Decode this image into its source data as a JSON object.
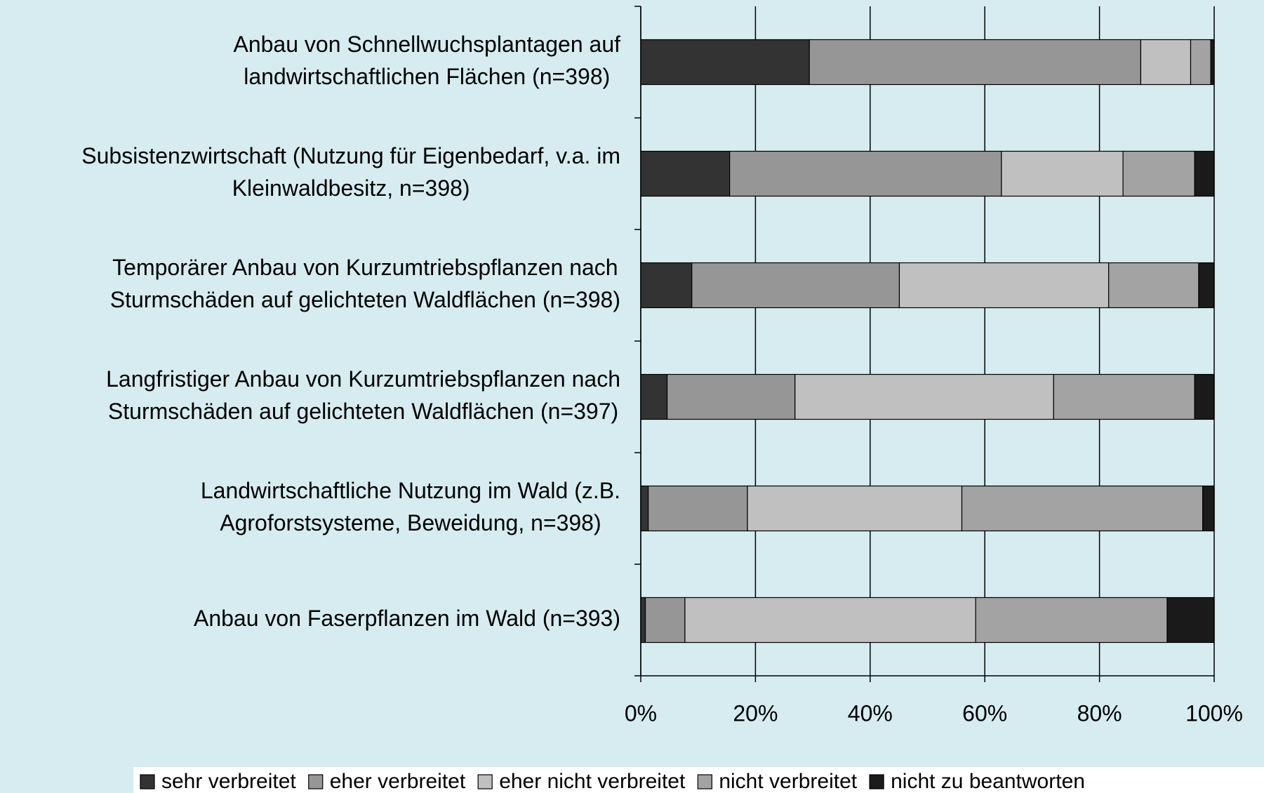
{
  "chart_data": {
    "type": "stacked_barh",
    "categories": [
      [
        "Anbau von Schnellwuchsplantagen auf",
        "landwirtschaftlichen Flächen (n=398)"
      ],
      [
        "Subsistenzwirtschaft (Nutzung für Eigenbedarf, v.a. im",
        "Kleinwaldbesitz, n=398)"
      ],
      [
        "Temporärer Anbau von Kurzumtriebspflanzen nach",
        "Sturmschäden auf gelichteten Waldflächen (n=398)"
      ],
      [
        "Langfristiger Anbau von Kurzumtriebspflanzen nach",
        "Sturmschäden auf gelichteten Waldflächen (n=397)"
      ],
      [
        "Landwirtschaftliche Nutzung im Wald (z.B.",
        "Agroforstsysteme, Beweidung, n=398)"
      ],
      [
        "Anbau von Faserpflanzen im Wald (n=393)"
      ]
    ],
    "series": [
      {
        "name": "sehr verbreitet",
        "color": "#333333",
        "values": [
          29.4,
          15.5,
          8.9,
          4.6,
          1.3,
          0.8
        ]
      },
      {
        "name": "eher verbreitet",
        "color": "#969696",
        "values": [
          57.8,
          47.4,
          36.2,
          22.3,
          17.3,
          6.9
        ]
      },
      {
        "name": "eher nicht verbreitet",
        "color": "#c0c0c0",
        "values": [
          8.7,
          21.2,
          36.5,
          45.1,
          37.4,
          50.7
        ]
      },
      {
        "name": "nicht verbreitet",
        "color": "#a3a3a3",
        "values": [
          3.5,
          12.5,
          15.7,
          24.6,
          42.0,
          33.4
        ]
      },
      {
        "name": "nicht zu beantworten",
        "color": "#1a1a1a",
        "values": [
          0.6,
          3.4,
          2.7,
          3.4,
          2.0,
          8.2
        ]
      }
    ],
    "xlim": [
      0,
      100
    ],
    "xticks": [
      {
        "value": 0,
        "label": "0%"
      },
      {
        "value": 20,
        "label": "20%"
      },
      {
        "value": 40,
        "label": "40%"
      },
      {
        "value": 60,
        "label": "60%"
      },
      {
        "value": 80,
        "label": "80%"
      },
      {
        "value": 100,
        "label": "100%"
      }
    ],
    "grid": true,
    "legend": "bottom"
  }
}
